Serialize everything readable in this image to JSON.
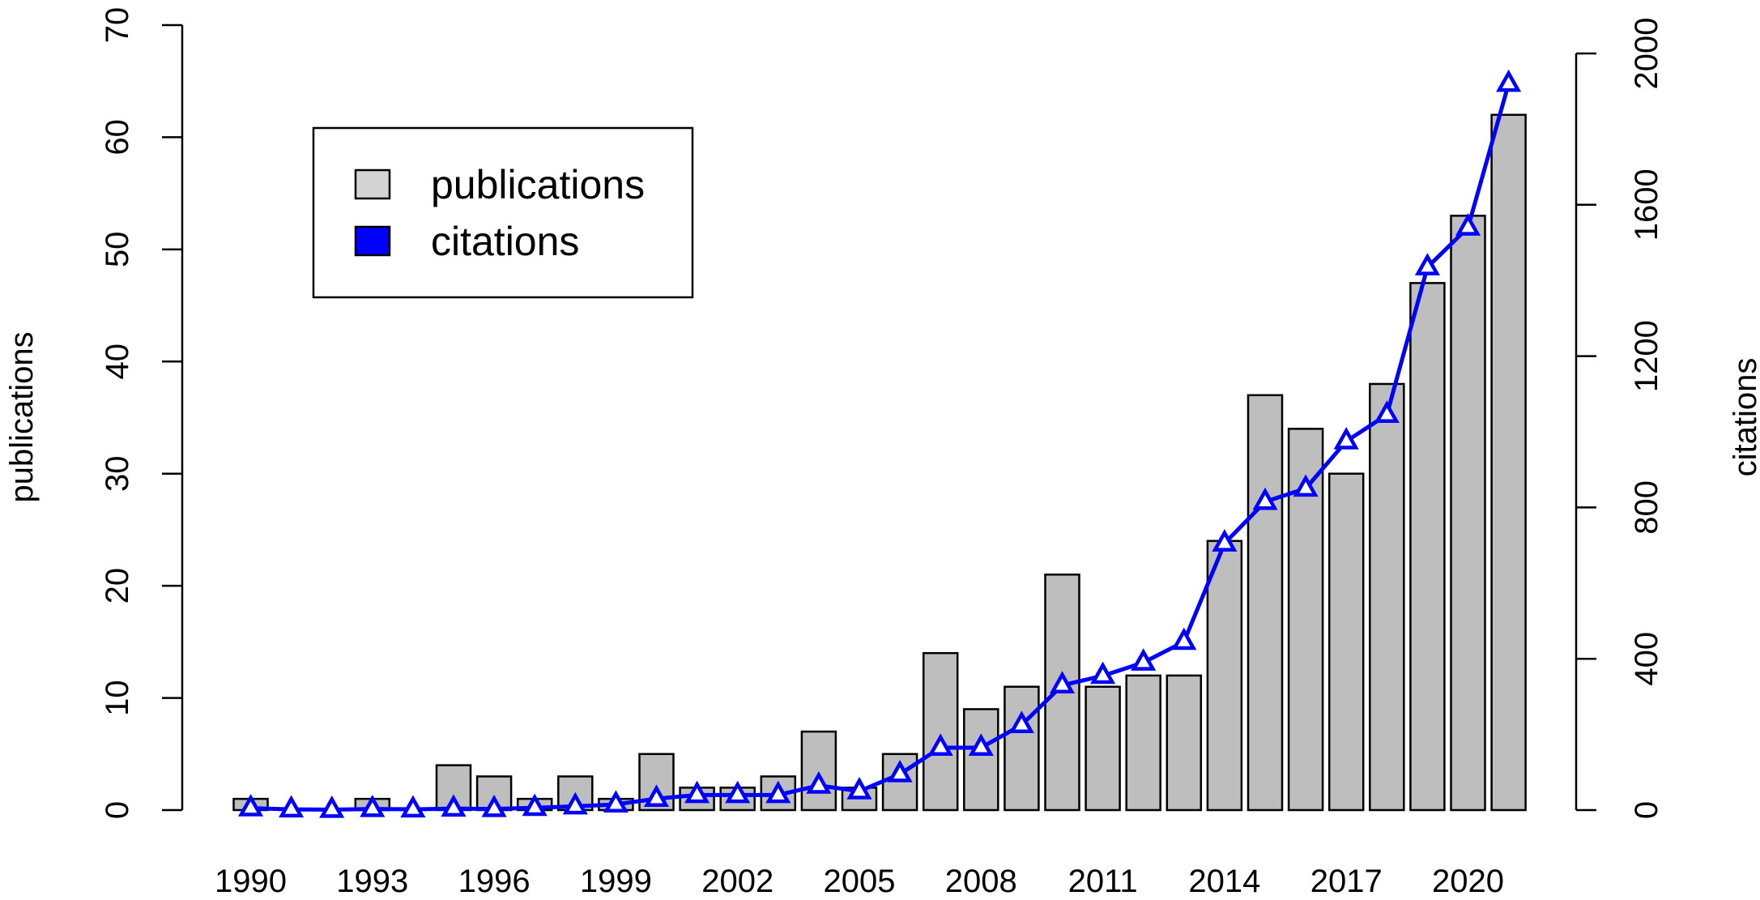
{
  "chart_data": {
    "type": "bar",
    "x": [
      1990,
      1991,
      1992,
      1993,
      1994,
      1995,
      1996,
      1997,
      1998,
      1999,
      2000,
      2001,
      2002,
      2003,
      2004,
      2005,
      2006,
      2007,
      2008,
      2009,
      2010,
      2011,
      2012,
      2013,
      2014,
      2015,
      2016,
      2017,
      2018,
      2019,
      2020,
      2021
    ],
    "x_tick_labels": [
      "1990",
      "1993",
      "1996",
      "1999",
      "2002",
      "2005",
      "2008",
      "2011",
      "2014",
      "2017",
      "2020"
    ],
    "series": [
      {
        "name": "publications",
        "type": "bar",
        "axis": "left",
        "color": "#bebebe",
        "values": [
          1,
          0,
          0,
          1,
          0,
          4,
          3,
          1,
          3,
          1,
          5,
          2,
          2,
          3,
          7,
          2,
          5,
          14,
          9,
          11,
          21,
          11,
          12,
          12,
          24,
          37,
          34,
          30,
          38,
          47,
          53,
          62
        ]
      },
      {
        "name": "citations",
        "type": "line",
        "marker": "triangle",
        "axis": "right",
        "color": "#0000ff",
        "values": [
          5,
          2,
          1,
          3,
          2,
          4,
          3,
          6,
          10,
          15,
          30,
          40,
          40,
          40,
          65,
          50,
          95,
          165,
          165,
          225,
          330,
          355,
          390,
          445,
          705,
          815,
          850,
          975,
          1045,
          1435,
          1540,
          1920
        ]
      }
    ],
    "y_left": {
      "label": "publications",
      "lim": [
        0,
        70
      ],
      "ticks": [
        0,
        10,
        20,
        30,
        40,
        50,
        60,
        70
      ]
    },
    "y_right": {
      "label": "citations",
      "lim": [
        0,
        2000
      ],
      "ticks": [
        0,
        400,
        800,
        1200,
        1600,
        2000
      ]
    },
    "legend": {
      "position": "top-left",
      "entries": [
        {
          "label": "publications",
          "color": "#d3d3d3"
        },
        {
          "label": "citations",
          "color": "#0000ff"
        }
      ]
    },
    "grid": false
  }
}
